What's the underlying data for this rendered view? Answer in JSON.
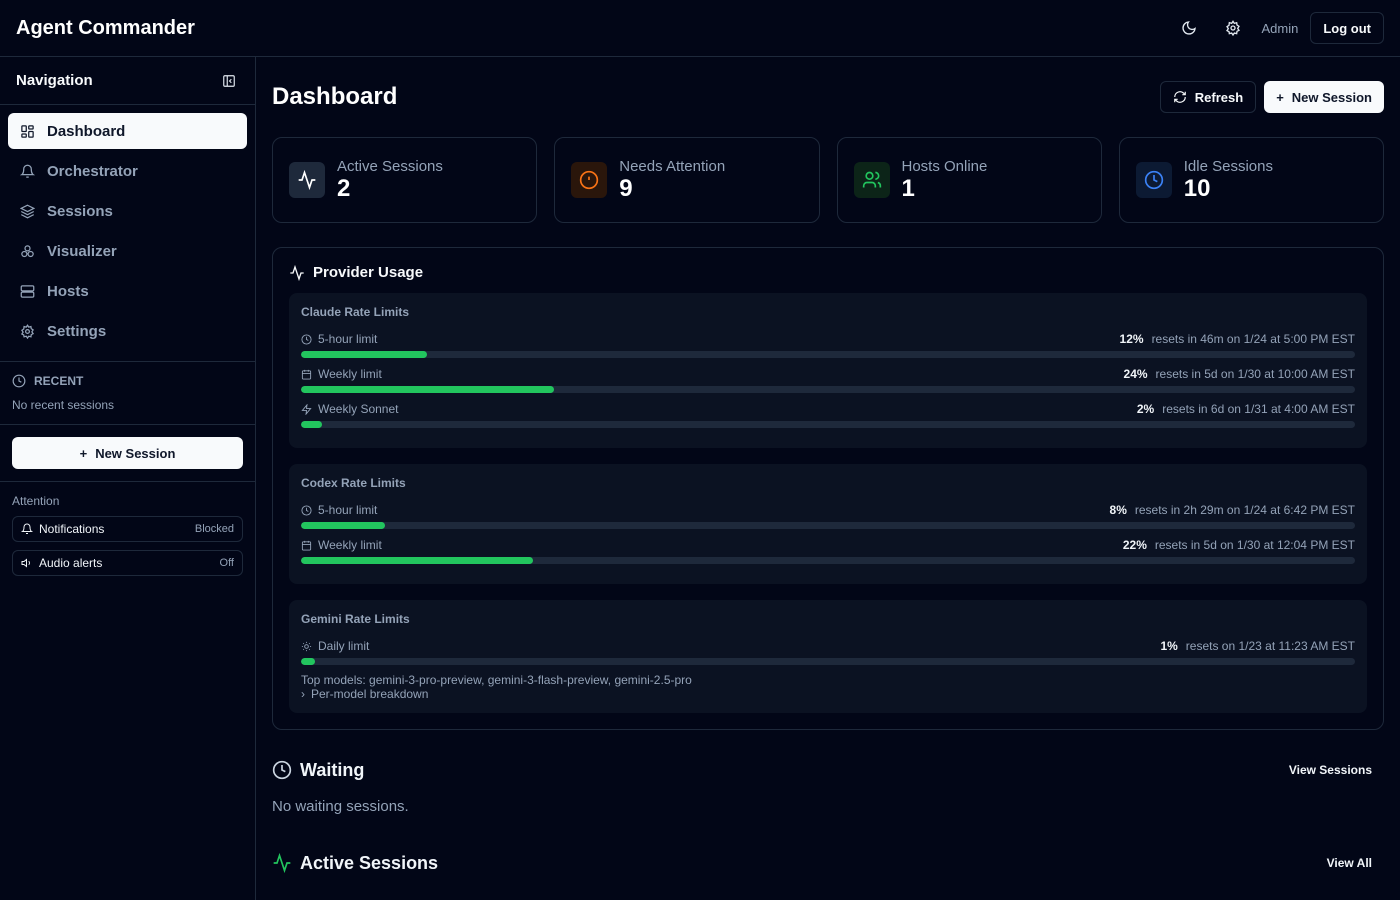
{
  "app": {
    "title": "Agent Commander",
    "user": "Admin",
    "logout": "Log out"
  },
  "sidebar": {
    "title": "Navigation",
    "items": [
      {
        "label": "Dashboard",
        "icon": "grid-icon",
        "active": true
      },
      {
        "label": "Orchestrator",
        "icon": "bell-icon"
      },
      {
        "label": "Sessions",
        "icon": "layers-icon"
      },
      {
        "label": "Visualizer",
        "icon": "cubes-icon"
      },
      {
        "label": "Hosts",
        "icon": "server-icon"
      },
      {
        "label": "Settings",
        "icon": "gear-icon"
      }
    ],
    "recent_title": "RECENT",
    "recent_empty": "No recent sessions",
    "new_session": "New Session",
    "attention_title": "Attention",
    "attention": [
      {
        "label": "Notifications",
        "value": "Blocked"
      },
      {
        "label": "Audio alerts",
        "value": "Off"
      }
    ]
  },
  "main": {
    "title": "Dashboard",
    "refresh": "Refresh",
    "new_session": "New Session",
    "stats": [
      {
        "label": "Active Sessions",
        "value": "2",
        "color": "#ffffff"
      },
      {
        "label": "Needs Attention",
        "value": "9",
        "color": "#f97316"
      },
      {
        "label": "Hosts Online",
        "value": "1",
        "color": "#22c55e"
      },
      {
        "label": "Idle Sessions",
        "value": "10",
        "color": "#3b82f6"
      }
    ],
    "provider_usage": {
      "title": "Provider Usage",
      "groups": [
        {
          "title": "Claude Rate Limits",
          "rows": [
            {
              "icon": "clock-icon",
              "label": "5-hour limit",
              "percent": 12,
              "percent_label": "12%",
              "reset": "resets in 46m on 1/24 at 5:00 PM EST"
            },
            {
              "icon": "calendar-icon",
              "label": "Weekly limit",
              "percent": 24,
              "percent_label": "24%",
              "reset": "resets in 5d on 1/30 at 10:00 AM EST"
            },
            {
              "icon": "zap-icon",
              "label": "Weekly Sonnet",
              "percent": 2,
              "percent_label": "2%",
              "reset": "resets in 6d on 1/31 at 4:00 AM EST"
            }
          ]
        },
        {
          "title": "Codex Rate Limits",
          "rows": [
            {
              "icon": "clock-icon",
              "label": "5-hour limit",
              "percent": 8,
              "percent_label": "8%",
              "reset": "resets in 2h 29m on 1/24 at 6:42 PM EST"
            },
            {
              "icon": "calendar-icon",
              "label": "Weekly limit",
              "percent": 22,
              "percent_label": "22%",
              "reset": "resets in 5d on 1/30 at 12:04 PM EST"
            }
          ]
        },
        {
          "title": "Gemini Rate Limits",
          "rows": [
            {
              "icon": "sun-icon",
              "label": "Daily limit",
              "percent": 1,
              "percent_label": "1%",
              "reset": "resets on 1/23 at 11:23 AM EST"
            }
          ],
          "top_models": "Top models: gemini-3-pro-preview, gemini-3-flash-preview, gemini-2.5-pro",
          "breakdown": "Per-model breakdown"
        }
      ]
    },
    "waiting": {
      "title": "Waiting",
      "link": "View Sessions",
      "empty": "No waiting sessions."
    },
    "active": {
      "title": "Active Sessions",
      "link": "View All"
    }
  }
}
